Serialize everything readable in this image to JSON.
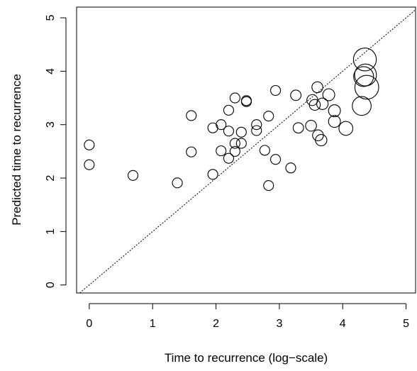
{
  "chart_data": {
    "type": "scatter",
    "title": "",
    "xlabel": "Time to recurrence (log−scale)",
    "ylabel": "Predicted time to recurrence",
    "xlim": [
      -0.2,
      5.15
    ],
    "ylim": [
      -0.15,
      5.2
    ],
    "x_ticks": [
      0,
      1,
      2,
      3,
      4,
      5
    ],
    "y_ticks": [
      0,
      1,
      2,
      3,
      4,
      5
    ],
    "grid": false,
    "legend": "none",
    "reference_line": {
      "type": "identity",
      "style": "dotted"
    },
    "point_size_encoding": "marker radius varies by observation (relative size)",
    "colors": {
      "stroke": "#000000",
      "background": "#ffffff"
    },
    "points": [
      {
        "x": 0.0,
        "y": 2.62,
        "size": 1
      },
      {
        "x": 0.0,
        "y": 2.25,
        "size": 1
      },
      {
        "x": 0.69,
        "y": 2.05,
        "size": 1
      },
      {
        "x": 1.39,
        "y": 1.91,
        "size": 1
      },
      {
        "x": 1.61,
        "y": 3.17,
        "size": 1
      },
      {
        "x": 1.61,
        "y": 2.49,
        "size": 1
      },
      {
        "x": 1.95,
        "y": 2.94,
        "size": 1
      },
      {
        "x": 1.95,
        "y": 2.07,
        "size": 1
      },
      {
        "x": 2.08,
        "y": 3.0,
        "size": 1
      },
      {
        "x": 2.08,
        "y": 2.51,
        "size": 1
      },
      {
        "x": 2.2,
        "y": 3.27,
        "size": 1
      },
      {
        "x": 2.2,
        "y": 2.88,
        "size": 1
      },
      {
        "x": 2.2,
        "y": 2.37,
        "size": 1
      },
      {
        "x": 2.3,
        "y": 3.5,
        "size": 1
      },
      {
        "x": 2.3,
        "y": 2.65,
        "size": 1
      },
      {
        "x": 2.3,
        "y": 2.5,
        "size": 1
      },
      {
        "x": 2.4,
        "y": 2.86,
        "size": 1
      },
      {
        "x": 2.4,
        "y": 2.65,
        "size": 1
      },
      {
        "x": 2.48,
        "y": 3.45,
        "size": 1
      },
      {
        "x": 2.48,
        "y": 3.43,
        "size": 1
      },
      {
        "x": 2.64,
        "y": 3.0,
        "size": 1
      },
      {
        "x": 2.64,
        "y": 2.89,
        "size": 1
      },
      {
        "x": 2.77,
        "y": 2.52,
        "size": 1
      },
      {
        "x": 2.83,
        "y": 3.16,
        "size": 1
      },
      {
        "x": 2.83,
        "y": 1.86,
        "size": 1
      },
      {
        "x": 2.94,
        "y": 3.64,
        "size": 1
      },
      {
        "x": 2.94,
        "y": 2.35,
        "size": 1
      },
      {
        "x": 3.18,
        "y": 2.19,
        "size": 1
      },
      {
        "x": 3.26,
        "y": 3.55,
        "size": 1.05
      },
      {
        "x": 3.3,
        "y": 2.94,
        "size": 1.05
      },
      {
        "x": 3.5,
        "y": 2.98,
        "size": 1.1
      },
      {
        "x": 3.52,
        "y": 3.46,
        "size": 1.1
      },
      {
        "x": 3.56,
        "y": 3.37,
        "size": 1.1
      },
      {
        "x": 3.6,
        "y": 3.7,
        "size": 1.1
      },
      {
        "x": 3.61,
        "y": 2.8,
        "size": 1.1
      },
      {
        "x": 3.66,
        "y": 2.71,
        "size": 1.15
      },
      {
        "x": 3.68,
        "y": 3.39,
        "size": 1.15
      },
      {
        "x": 3.78,
        "y": 3.56,
        "size": 1.2
      },
      {
        "x": 3.87,
        "y": 3.26,
        "size": 1.2
      },
      {
        "x": 3.87,
        "y": 3.06,
        "size": 1.2
      },
      {
        "x": 4.05,
        "y": 2.93,
        "size": 1.4
      },
      {
        "x": 4.3,
        "y": 3.35,
        "size": 1.9
      },
      {
        "x": 4.33,
        "y": 3.9,
        "size": 2.0
      },
      {
        "x": 4.35,
        "y": 4.22,
        "size": 2.3
      },
      {
        "x": 4.36,
        "y": 3.93,
        "size": 2.2
      },
      {
        "x": 4.38,
        "y": 3.7,
        "size": 2.4
      }
    ]
  }
}
